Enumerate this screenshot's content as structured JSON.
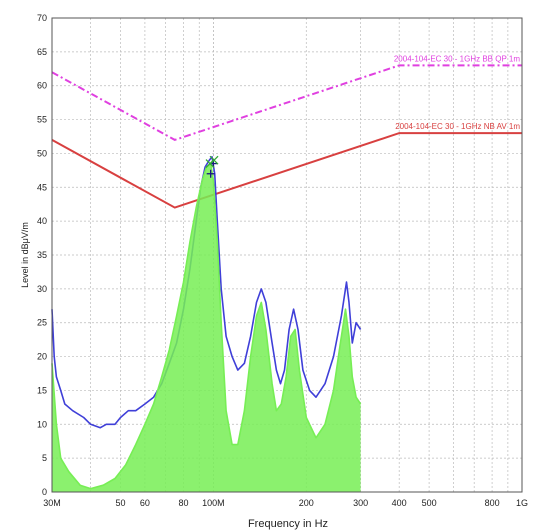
{
  "chart_data": {
    "type": "line",
    "title": "",
    "xlabel": "Frequency in Hz",
    "ylabel": "Level in dBμV/m",
    "x_scale": "log",
    "xlim_hz": [
      30000000,
      1000000000
    ],
    "ylim": [
      0,
      70
    ],
    "grid": true,
    "x_ticks": [
      {
        "value": 30000000,
        "label": "30M"
      },
      {
        "value": 50000000,
        "label": "50"
      },
      {
        "value": 60000000,
        "label": "60"
      },
      {
        "value": 80000000,
        "label": "80"
      },
      {
        "value": 100000000,
        "label": "100M"
      },
      {
        "value": 200000000,
        "label": "200"
      },
      {
        "value": 300000000,
        "label": "300"
      },
      {
        "value": 400000000,
        "label": "400"
      },
      {
        "value": 500000000,
        "label": "500"
      },
      {
        "value": 800000000,
        "label": "800"
      },
      {
        "value": 1000000000,
        "label": "1G"
      }
    ],
    "y_ticks": [
      0,
      5,
      10,
      15,
      20,
      25,
      30,
      35,
      40,
      45,
      50,
      55,
      60,
      65,
      70
    ],
    "limit_lines": [
      {
        "label": "2004-104-EC 30 - 1GHz BB QP 1m",
        "color": "#e040e0",
        "dash": true,
        "points_hz_db": [
          [
            30000000,
            62
          ],
          [
            75000000,
            52
          ],
          [
            400000000,
            63
          ],
          [
            1000000000,
            63
          ]
        ]
      },
      {
        "label": "2004-104-EC 30 - 1GHz NB AV 1m",
        "color": "#d84040",
        "dash": false,
        "points_hz_db": [
          [
            30000000,
            52
          ],
          [
            75000000,
            42
          ],
          [
            400000000,
            53
          ],
          [
            1000000000,
            53
          ]
        ]
      }
    ],
    "series": [
      {
        "color": "#3f3fd8",
        "points_hz_db": [
          [
            30000000,
            27
          ],
          [
            30500000,
            20
          ],
          [
            31000000,
            17
          ],
          [
            32000000,
            15
          ],
          [
            33000000,
            13
          ],
          [
            35000000,
            12
          ],
          [
            38000000,
            11
          ],
          [
            40000000,
            10
          ],
          [
            43000000,
            9.5
          ],
          [
            45000000,
            10
          ],
          [
            48000000,
            10
          ],
          [
            50000000,
            11
          ],
          [
            53000000,
            12
          ],
          [
            56000000,
            12
          ],
          [
            60000000,
            13
          ],
          [
            64000000,
            14
          ],
          [
            68000000,
            16
          ],
          [
            72000000,
            19
          ],
          [
            76000000,
            22
          ],
          [
            80000000,
            27
          ],
          [
            84000000,
            33
          ],
          [
            88000000,
            40
          ],
          [
            91000000,
            45
          ],
          [
            94000000,
            48
          ],
          [
            97000000,
            49
          ],
          [
            99000000,
            49.5
          ],
          [
            101000000,
            47
          ],
          [
            103000000,
            40
          ],
          [
            106000000,
            30
          ],
          [
            110000000,
            23
          ],
          [
            115000000,
            20
          ],
          [
            120000000,
            18
          ],
          [
            126000000,
            19
          ],
          [
            132000000,
            23
          ],
          [
            138000000,
            28
          ],
          [
            143000000,
            30
          ],
          [
            148000000,
            28
          ],
          [
            155000000,
            22
          ],
          [
            160000000,
            18
          ],
          [
            165000000,
            16
          ],
          [
            170000000,
            18
          ],
          [
            176000000,
            24
          ],
          [
            182000000,
            27
          ],
          [
            188000000,
            24
          ],
          [
            195000000,
            18
          ],
          [
            205000000,
            15
          ],
          [
            215000000,
            14
          ],
          [
            230000000,
            16
          ],
          [
            245000000,
            20
          ],
          [
            260000000,
            26
          ],
          [
            270000000,
            31
          ],
          [
            275000000,
            28
          ],
          [
            282000000,
            22
          ],
          [
            290000000,
            25
          ],
          [
            300000000,
            24
          ]
        ]
      },
      {
        "color": "#77ee55",
        "points_hz_db": [
          [
            30000000,
            19
          ],
          [
            31000000,
            10
          ],
          [
            32000000,
            5
          ],
          [
            34000000,
            3
          ],
          [
            37000000,
            1
          ],
          [
            40000000,
            0.5
          ],
          [
            44000000,
            1
          ],
          [
            48000000,
            2
          ],
          [
            52000000,
            4
          ],
          [
            56000000,
            7
          ],
          [
            60000000,
            10
          ],
          [
            64000000,
            13
          ],
          [
            68000000,
            17
          ],
          [
            72000000,
            21
          ],
          [
            76000000,
            26
          ],
          [
            80000000,
            31
          ],
          [
            84000000,
            37
          ],
          [
            88000000,
            42
          ],
          [
            92000000,
            46
          ],
          [
            95000000,
            48
          ],
          [
            98000000,
            48.5
          ],
          [
            100000000,
            46
          ],
          [
            103000000,
            37
          ],
          [
            106000000,
            25
          ],
          [
            110000000,
            12
          ],
          [
            115000000,
            7
          ],
          [
            120000000,
            7
          ],
          [
            126000000,
            12
          ],
          [
            132000000,
            20
          ],
          [
            138000000,
            26
          ],
          [
            143000000,
            28
          ],
          [
            148000000,
            24
          ],
          [
            155000000,
            16
          ],
          [
            160000000,
            12
          ],
          [
            166000000,
            13
          ],
          [
            172000000,
            17
          ],
          [
            178000000,
            23
          ],
          [
            184000000,
            24
          ],
          [
            190000000,
            18
          ],
          [
            200000000,
            11
          ],
          [
            215000000,
            8
          ],
          [
            230000000,
            10
          ],
          [
            245000000,
            15
          ],
          [
            258000000,
            22
          ],
          [
            268000000,
            27
          ],
          [
            275000000,
            23
          ],
          [
            282000000,
            17
          ],
          [
            290000000,
            14
          ],
          [
            300000000,
            13
          ]
        ]
      }
    ],
    "markers": [
      {
        "symbol": "+",
        "color": "#1a1a80",
        "x_hz": 98000000,
        "y_db": 47
      },
      {
        "symbol": "+",
        "color": "#1a1a80",
        "x_hz": 100000000,
        "y_db": 48.5
      },
      {
        "symbol": "x",
        "color": "#33aa33",
        "x_hz": 97500000,
        "y_db": 48.5
      },
      {
        "symbol": "x",
        "color": "#33aa33",
        "x_hz": 100500000,
        "y_db": 49
      }
    ]
  }
}
